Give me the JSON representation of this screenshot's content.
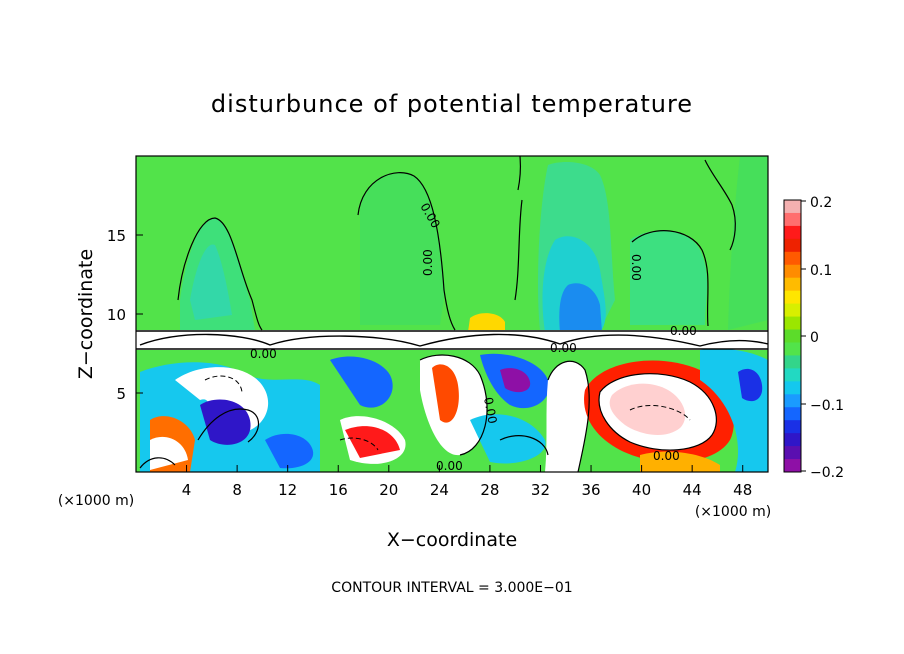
{
  "chart_data": {
    "type": "heatmap",
    "title": "disturbunce of potential temperature",
    "xlabel": "X−coordinate",
    "ylabel": "Z−coordinate",
    "x_unit_left": "(×1000 m)",
    "x_unit_right": "(×1000 m)",
    "xlim": [
      0,
      50
    ],
    "ylim": [
      0,
      20
    ],
    "x_ticks": [
      "4",
      "8",
      "12",
      "16",
      "20",
      "24",
      "28",
      "32",
      "36",
      "40",
      "44",
      "48"
    ],
    "y_ticks": [
      "5",
      "10",
      "15"
    ],
    "colorbar": {
      "range": [
        -0.2,
        0.2
      ],
      "tick_labels": [
        "0.2",
        "0.1",
        "0",
        "−0.1",
        "−0.2"
      ],
      "colors": [
        "#f4b0b0",
        "#ff6e6e",
        "#ff1a1a",
        "#ee2200",
        "#ff5a00",
        "#ff8c00",
        "#ffbb00",
        "#ffe600",
        "#d8ef00",
        "#9be600",
        "#5cdc2a",
        "#52e34a",
        "#33d58a",
        "#22d9c2",
        "#14c8ee",
        "#1a9bff",
        "#1466ff",
        "#1a30e6",
        "#2f16c8",
        "#5a0fb0",
        "#8e10a6"
      ]
    },
    "contour_labels": [
      "0.00",
      "0.00",
      "0.00",
      "0.00",
      "0.00",
      "0.00",
      "0.00",
      "0.00",
      "0.00"
    ],
    "footer": "CONTOUR INTERVAL = 3.000E−01"
  }
}
